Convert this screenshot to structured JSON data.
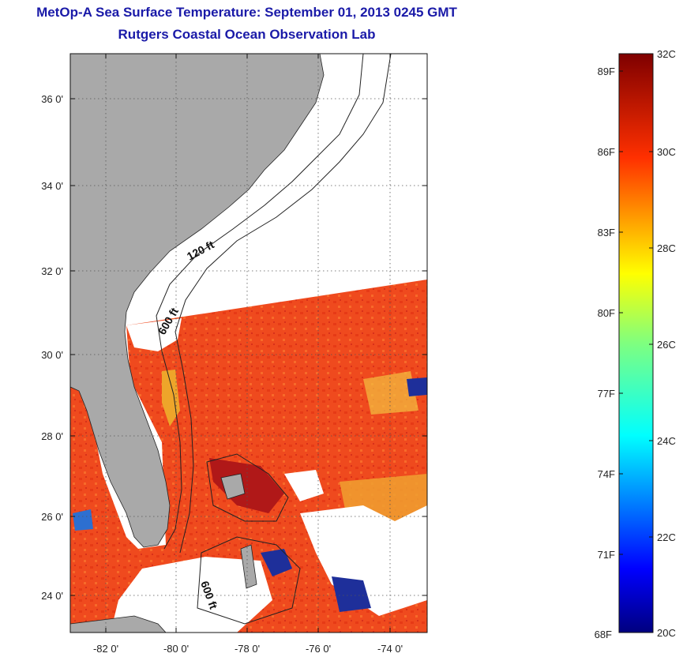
{
  "header": {
    "title": "MetOp-A Sea Surface Temperature:  September 01, 2013 0245 GMT",
    "subtitle": "Rutgers Coastal Ocean Observation Lab"
  },
  "map": {
    "lon_labels": [
      "-82 0'",
      "-80 0'",
      "-78 0'",
      "-76 0'",
      "-74 0'"
    ],
    "lat_labels": [
      "36 0'",
      "34 0'",
      "32 0'",
      "30 0'",
      "28 0'",
      "26 0'",
      "24 0'"
    ],
    "contour_labels": [
      "120 ft",
      "600 ft",
      "600 ft"
    ],
    "colors": {
      "land": "#a9a9a9",
      "no_data": "#ffffff",
      "sst_dominant": "#f2401c",
      "sst_warm_patch": "#e8a020",
      "cold_cloud_edge": "#1a2a8a"
    }
  },
  "colorbar": {
    "celsius_labels": [
      "32C",
      "30C",
      "28C",
      "26C",
      "24C",
      "22C",
      "20C"
    ],
    "fahrenheit_labels": [
      "89F",
      "86F",
      "83F",
      "80F",
      "77F",
      "74F",
      "71F",
      "68F"
    ],
    "min_c": 20,
    "max_c": 32,
    "colormap": "jet"
  }
}
